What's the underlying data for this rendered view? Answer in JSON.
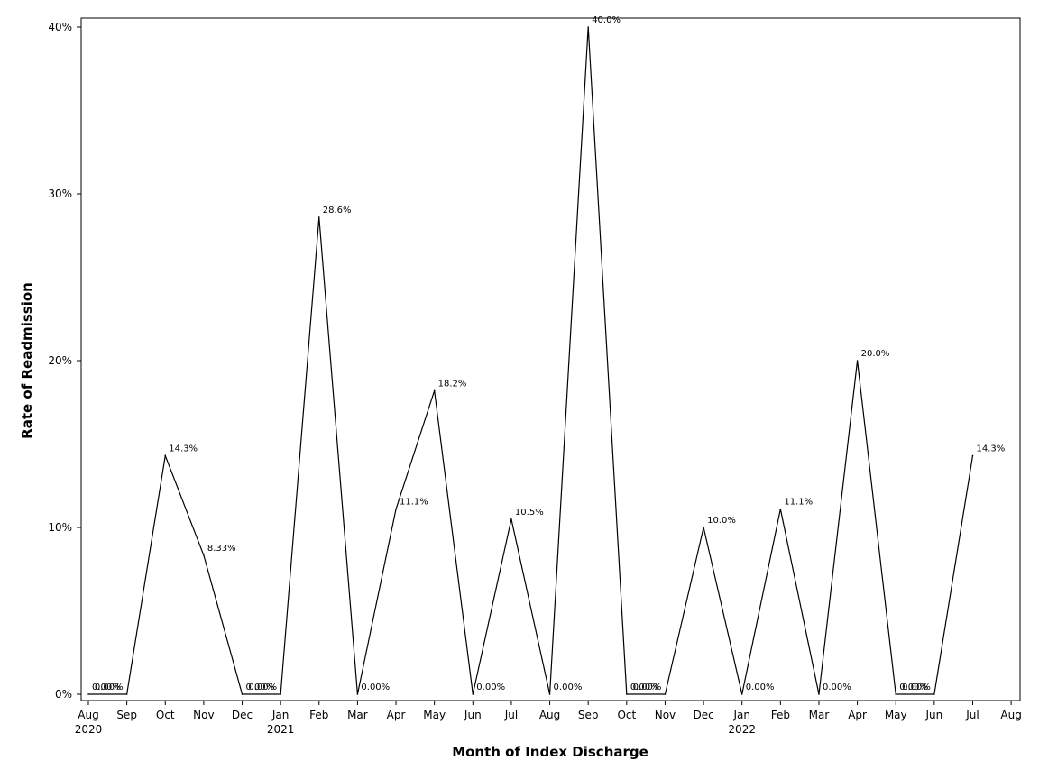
{
  "chart_data": {
    "type": "line",
    "xlabel": "Month of Index Discharge",
    "ylabel": "Rate of Readmission",
    "ylim": [
      0,
      40
    ],
    "y_ticks": [
      "0%",
      "10%",
      "20%",
      "30%",
      "40%"
    ],
    "x_ticks": [
      {
        "month": "Aug",
        "year": "2020"
      },
      {
        "month": "Sep",
        "year": ""
      },
      {
        "month": "Oct",
        "year": ""
      },
      {
        "month": "Nov",
        "year": ""
      },
      {
        "month": "Dec",
        "year": ""
      },
      {
        "month": "Jan",
        "year": "2021"
      },
      {
        "month": "Feb",
        "year": ""
      },
      {
        "month": "Mar",
        "year": ""
      },
      {
        "month": "Apr",
        "year": ""
      },
      {
        "month": "May",
        "year": ""
      },
      {
        "month": "Jun",
        "year": ""
      },
      {
        "month": "Jul",
        "year": ""
      },
      {
        "month": "Aug",
        "year": ""
      },
      {
        "month": "Sep",
        "year": ""
      },
      {
        "month": "Oct",
        "year": ""
      },
      {
        "month": "Nov",
        "year": ""
      },
      {
        "month": "Dec",
        "year": ""
      },
      {
        "month": "Jan",
        "year": "2022"
      },
      {
        "month": "Feb",
        "year": ""
      },
      {
        "month": "Mar",
        "year": ""
      },
      {
        "month": "Apr",
        "year": ""
      },
      {
        "month": "May",
        "year": ""
      },
      {
        "month": "Jun",
        "year": ""
      },
      {
        "month": "Jul",
        "year": ""
      },
      {
        "month": "Aug",
        "year": ""
      }
    ],
    "x": [
      "2020-08",
      "2020-09",
      "2020-10",
      "2020-11",
      "2020-12",
      "2021-01",
      "2021-02",
      "2021-03",
      "2021-04",
      "2021-05",
      "2021-06",
      "2021-07",
      "2021-08",
      "2021-09",
      "2021-10",
      "2021-11",
      "2021-12",
      "2022-01",
      "2022-02",
      "2022-03",
      "2022-04",
      "2022-05",
      "2022-06",
      "2022-07"
    ],
    "series": [
      {
        "values": [
          0,
          0,
          14.3,
          8.33,
          0,
          0,
          28.6,
          0,
          11.1,
          18.2,
          0,
          10.5,
          0,
          40.0,
          0,
          0,
          10.0,
          0,
          11.1,
          0,
          20.0,
          0,
          0,
          14.3
        ],
        "labels": [
          "0.00%",
          "0.00%",
          "14.3%",
          "8.33%",
          "0.00%",
          "0.00%",
          "28.6%",
          "0.00%",
          "11.1%",
          "18.2%",
          "0.00%",
          "10.5%",
          "0.00%",
          "40.0%",
          "0.00%",
          "0.00%",
          "10.0%",
          "0.00%",
          "11.1%",
          "0.00%",
          "20.0%",
          "0.00%",
          "0.00%",
          "14.3%"
        ]
      }
    ],
    "grid": false,
    "line_color": "#000000"
  }
}
